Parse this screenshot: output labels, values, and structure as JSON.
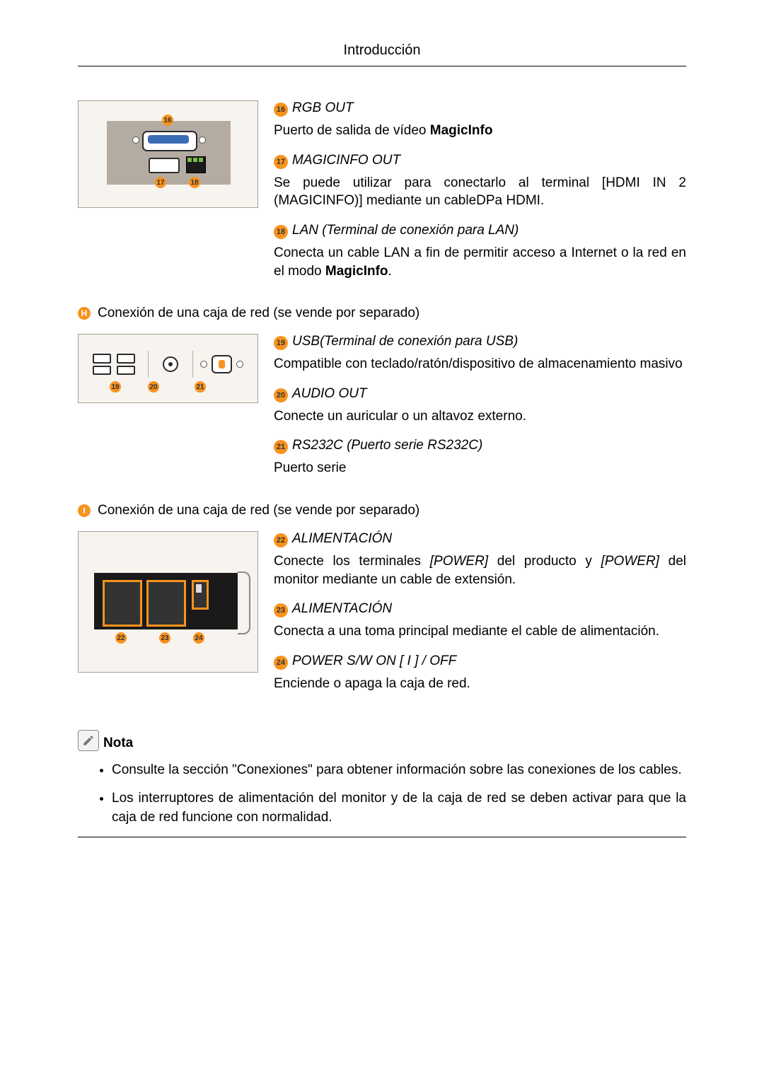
{
  "theme": {
    "accent_color": "#f7931e",
    "text_color": "#000000",
    "bg_color": "#ffffff",
    "diagram_bg": "#f7f3ee",
    "diagram_border": "#a89f94",
    "font_body_pt": 15,
    "italic_label": true
  },
  "header": {
    "title": "Introducción"
  },
  "sections": [
    {
      "letter": null,
      "title": null,
      "diagram": "diag1",
      "items": [
        {
          "num": "16",
          "term": "RGB OUT",
          "body_parts": [
            {
              "t": "Puerto de salida de vídeo "
            },
            {
              "t": "MagicInfo",
              "bold": true
            }
          ]
        },
        {
          "num": "17",
          "term": "MAGICINFO OUT",
          "body_parts": [
            {
              "t": "Se puede utilizar para conectarlo al terminal [HDMI IN 2 (MAGICINFO)] mediante un cableDPa HDMI."
            }
          ]
        },
        {
          "num": "18",
          "term": "LAN (Terminal de conexión para LAN)",
          "body_parts": [
            {
              "t": "Conecta un cable LAN a fin de permitir acceso a Internet o la red en el modo "
            },
            {
              "t": "MagicInfo",
              "bold": true
            },
            {
              "t": "."
            }
          ]
        }
      ]
    },
    {
      "letter": "H",
      "title": "Conexión de una caja de red (se vende por separado)",
      "diagram": "diag2",
      "items": [
        {
          "num": "19",
          "term": "USB(Terminal de conexión para USB)",
          "body_parts": [
            {
              "t": "Compatible con teclado/ratón/dispositivo de almacenamiento masivo"
            }
          ]
        },
        {
          "num": "20",
          "term": "AUDIO OUT",
          "body_parts": [
            {
              "t": "Conecte un auricular o un altavoz externo."
            }
          ]
        },
        {
          "num": "21",
          "term": "RS232C (Puerto serie RS232C)",
          "body_parts": [
            {
              "t": "Puerto serie"
            }
          ]
        }
      ]
    },
    {
      "letter": "I",
      "title": "Conexión de una caja de red (se vende por separado)",
      "diagram": "diag3",
      "items": [
        {
          "num": "22",
          "term": "ALIMENTACIÓN",
          "body_parts": [
            {
              "t": "Conecte los terminales "
            },
            {
              "t": "[POWER]",
              "ital": true
            },
            {
              "t": " del producto y "
            },
            {
              "t": "[POWER]",
              "ital": true
            },
            {
              "t": " del monitor mediante un cable de extensión."
            }
          ]
        },
        {
          "num": "23",
          "term": "ALIMENTACIÓN",
          "body_parts": [
            {
              "t": "Conecta a una toma principal mediante el cable de alimentación."
            }
          ]
        },
        {
          "num": "24",
          "term": "POWER S/W ON [ I ] / OFF",
          "body_parts": [
            {
              "t": "Enciende o apaga la caja de red."
            }
          ]
        }
      ]
    }
  ],
  "nota": {
    "label": "Nota",
    "bullets": [
      "Consulte la sección \"Conexiones\" para obtener información sobre las conexiones de los cables.",
      "Los interruptores de alimentación del monitor y de la caja de red se deben activar para que la caja de red funcione con normalidad."
    ]
  }
}
